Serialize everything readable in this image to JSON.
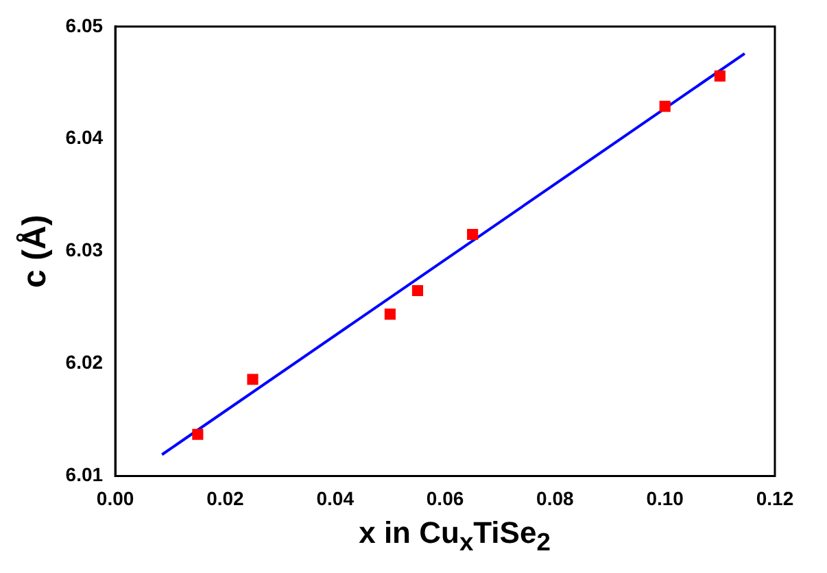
{
  "chart_data": {
    "type": "scatter",
    "xlabel": "x in Cu$_{x}$TiSe$_{2}$",
    "ylabel": "c (Å)",
    "series": [
      {
        "color": "#ff0000",
        "marker": "square",
        "x": [
          0.015,
          0.025,
          0.05,
          0.055,
          0.065,
          0.1,
          0.11
        ],
        "values": [
          6.0137,
          6.0186,
          6.0244,
          6.0265,
          6.0315,
          6.0429,
          6.0456
        ]
      },
      {
        "type": "line",
        "marker": "none",
        "color": "#0000ff",
        "x": [
          0.0085,
          0.1145
        ],
        "values": [
          6.0119,
          6.0476
        ]
      }
    ],
    "xlim": [
      0,
      0.12
    ],
    "ylim": [
      6.01,
      6.05
    ],
    "xticks": [
      {
        "value": 0,
        "label": "0.00"
      },
      0.02,
      0.04,
      0.06,
      0.08,
      {
        "value": 0.1,
        "label": "0.10"
      },
      0.12
    ],
    "yticks": [
      {
        "value": 6.01,
        "label": "6.01"
      },
      {
        "value": 6.02,
        "label": "6.02"
      },
      {
        "value": 6.03,
        "label": "6.03"
      },
      {
        "value": 6.04,
        "label": "6.04"
      },
      {
        "value": 6.05,
        "label": "6.05"
      }
    ],
    "grid": false,
    "legend": false
  }
}
